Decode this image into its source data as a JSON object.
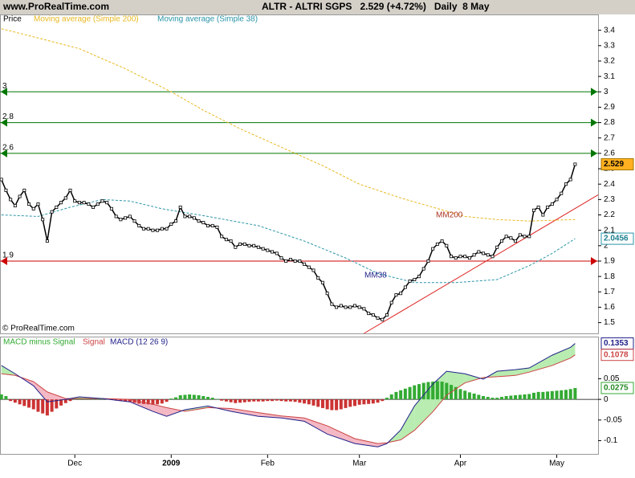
{
  "header": {
    "site": "www.ProRealTime.com",
    "title": "ALTR - ALTRI SGPS   2.529 (+4.72%)   Daily  8 May"
  },
  "chart_data": [
    {
      "type": "price",
      "xlim": [
        -0.3,
        130
      ],
      "ylim": [
        1.43,
        3.44
      ],
      "yticks": [
        1.5,
        1.6,
        1.7,
        1.8,
        1.9,
        2,
        2.1,
        2.2,
        2.3,
        2.4,
        2.5,
        2.6,
        2.7,
        2.8,
        2.9,
        3,
        3.1,
        3.2,
        3.3,
        3.4
      ],
      "series": [
        {
          "name": "Price",
          "color": "#000000",
          "values": [
            2.43,
            2.36,
            2.3,
            2.26,
            2.32,
            2.36,
            2.27,
            2.24,
            2.27,
            2.17,
            2.03,
            2.22,
            2.25,
            2.28,
            2.31,
            2.36,
            2.29,
            2.28,
            2.28,
            2.27,
            2.25,
            2.27,
            2.29,
            2.28,
            2.24,
            2.19,
            2.17,
            2.18,
            2.19,
            2.16,
            2.13,
            2.11,
            2.11,
            2.1,
            2.1,
            2.11,
            2.11,
            2.14,
            2.16,
            2.25,
            2.19,
            2.19,
            2.18,
            2.16,
            2.15,
            2.13,
            2.13,
            2.12,
            2.06,
            2.04,
            2.03,
            1.99,
            2.01,
            2.01,
            2.0,
            2.0,
            1.99,
            1.98,
            1.97,
            1.96,
            1.95,
            1.92,
            1.9,
            1.91,
            1.9,
            1.9,
            1.88,
            1.86,
            1.84,
            1.79,
            1.76,
            1.69,
            1.62,
            1.6,
            1.61,
            1.6,
            1.6,
            1.61,
            1.6,
            1.59,
            1.56,
            1.55,
            1.53,
            1.52,
            1.55,
            1.63,
            1.68,
            1.69,
            1.73,
            1.77,
            1.78,
            1.8,
            1.85,
            1.9,
            1.98,
            2.01,
            2.03,
            2.0,
            1.93,
            1.92,
            1.93,
            1.93,
            1.92,
            1.94,
            1.96,
            1.95,
            1.94,
            1.93,
            1.99,
            2.03,
            2.06,
            2.05,
            2.03,
            2.07,
            2.06,
            2.06,
            2.23,
            2.25,
            2.2,
            2.25,
            2.27,
            2.3,
            2.34,
            2.4,
            2.43,
            2.529
          ]
        },
        {
          "name": "Moving average (Simple 200)",
          "color": "#e8b820",
          "x": [
            0,
            8,
            17,
            27,
            37,
            44,
            52,
            61,
            70,
            78,
            87,
            94,
            101,
            108,
            115,
            125
          ],
          "values": [
            3.41,
            3.35,
            3.28,
            3.15,
            3.0,
            2.88,
            2.76,
            2.64,
            2.52,
            2.4,
            2.31,
            2.25,
            2.19,
            2.17,
            2.16,
            2.17
          ]
        },
        {
          "name": "Moving average (Simple 38)",
          "color": "#2a95a8",
          "x": [
            0,
            8,
            15,
            22,
            28,
            35,
            45,
            56,
            66,
            75,
            82,
            90,
            99,
            108,
            115,
            120,
            125
          ],
          "values": [
            2.2,
            2.19,
            2.25,
            2.3,
            2.29,
            2.24,
            2.19,
            2.13,
            2.03,
            1.92,
            1.82,
            1.76,
            1.76,
            1.78,
            1.87,
            1.95,
            2.0456
          ]
        }
      ],
      "levels": [
        {
          "value": 3,
          "color": "#007700"
        },
        {
          "value": 2.8,
          "color": "#007700"
        },
        {
          "value": 2.6,
          "color": "#007700"
        },
        {
          "value": 1.9,
          "color": "#cc0000"
        }
      ],
      "trendline": {
        "color": "#dd2222",
        "x": [
          79,
          130
        ],
        "values": [
          1.43,
          2.33
        ]
      },
      "annotations": [
        "MM200",
        "MM38"
      ],
      "copyright": "© ProRealTime.com"
    },
    {
      "type": "macd",
      "xlim": [
        -0.3,
        130
      ],
      "ylim": [
        -0.132,
        0.15
      ],
      "yticks": [
        -0.1,
        -0.05,
        0,
        0.05
      ],
      "xticks": [
        {
          "value": 16,
          "label": "Dec"
        },
        {
          "value": 37,
          "label": "2009"
        },
        {
          "value": 58,
          "label": "Feb"
        },
        {
          "value": 78,
          "label": "Mar"
        },
        {
          "value": 100,
          "label": "Apr"
        },
        {
          "value": 121,
          "label": "May"
        }
      ],
      "series": [
        {
          "name": "MACD minus Signal",
          "color": "#33aa33",
          "negative_color": "#cc3333",
          "values": [
            0.012,
            0.008,
            -0.004,
            -0.008,
            -0.012,
            -0.016,
            -0.02,
            -0.024,
            -0.03,
            -0.034,
            -0.039,
            -0.03,
            -0.022,
            -0.015,
            -0.009,
            -0.004,
            0.002,
            0.003,
            0.002,
            0.002,
            0.001,
            0.001,
            0.002,
            0.001,
            -0.001,
            -0.003,
            -0.004,
            -0.005,
            -0.006,
            -0.008,
            -0.01,
            -0.011,
            -0.012,
            -0.013,
            -0.012,
            -0.01,
            -0.006,
            0.002,
            0.005,
            0.01,
            0.011,
            0.012,
            0.011,
            0.01,
            0.008,
            0.006,
            0.004,
            0.001,
            -0.003,
            -0.005,
            -0.007,
            -0.009,
            -0.008,
            -0.007,
            -0.006,
            -0.005,
            -0.005,
            -0.005,
            -0.004,
            -0.004,
            -0.003,
            -0.004,
            -0.005,
            -0.005,
            -0.006,
            -0.008,
            -0.01,
            -0.012,
            -0.015,
            -0.018,
            -0.021,
            -0.024,
            -0.026,
            -0.026,
            -0.024,
            -0.021,
            -0.018,
            -0.016,
            -0.013,
            -0.012,
            -0.011,
            -0.01,
            -0.008,
            -0.004,
            0.004,
            0.012,
            0.018,
            0.022,
            0.026,
            0.03,
            0.034,
            0.037,
            0.04,
            0.042,
            0.043,
            0.044,
            0.043,
            0.04,
            0.035,
            0.03,
            0.025,
            0.021,
            0.017,
            0.014,
            0.011,
            0.008,
            0.006,
            0.004,
            0.004,
            0.006,
            0.008,
            0.009,
            0.01,
            0.011,
            0.012,
            0.013,
            0.016,
            0.018,
            0.018,
            0.019,
            0.02,
            0.021,
            0.022,
            0.023,
            0.025,
            0.0275
          ]
        },
        {
          "name": "Signal",
          "color": "#cc4444",
          "x": [
            0,
            3,
            7,
            10,
            14,
            17,
            22,
            28,
            33,
            36,
            40,
            45,
            50,
            56,
            61,
            66,
            71,
            77,
            82,
            84,
            87,
            90,
            94,
            97,
            101,
            105,
            108,
            112,
            115,
            120,
            124,
            125
          ],
          "values": [
            0.062,
            0.058,
            0.043,
            0.018,
            0.002,
            0.002,
            0.002,
            0,
            -0.012,
            -0.02,
            -0.029,
            -0.02,
            -0.022,
            -0.032,
            -0.04,
            -0.045,
            -0.064,
            -0.095,
            -0.107,
            -0.105,
            -0.098,
            -0.075,
            -0.03,
            0.01,
            0.04,
            0.053,
            0.055,
            0.058,
            0.066,
            0.082,
            0.1,
            0.1078
          ]
        },
        {
          "name": "MACD (12 26 9)",
          "color": "#22228a",
          "x": [
            0,
            3,
            7,
            10,
            14,
            17,
            22,
            28,
            33,
            36,
            40,
            45,
            50,
            56,
            61,
            66,
            71,
            77,
            82,
            84,
            87,
            90,
            94,
            97,
            101,
            105,
            108,
            112,
            115,
            120,
            124,
            125
          ],
          "values": [
            0.082,
            0.062,
            0.033,
            -0.006,
            0,
            0.006,
            0.002,
            -0.006,
            -0.029,
            -0.041,
            -0.025,
            -0.016,
            -0.029,
            -0.041,
            -0.045,
            -0.053,
            -0.084,
            -0.107,
            -0.115,
            -0.107,
            -0.074,
            -0.016,
            0.037,
            0.068,
            0.062,
            0.049,
            0.068,
            0.072,
            0.076,
            0.107,
            0.126,
            0.1353
          ]
        }
      ],
      "fill_colors": [
        "#b8ecb0",
        "#f4b8c4"
      ]
    }
  ]
}
